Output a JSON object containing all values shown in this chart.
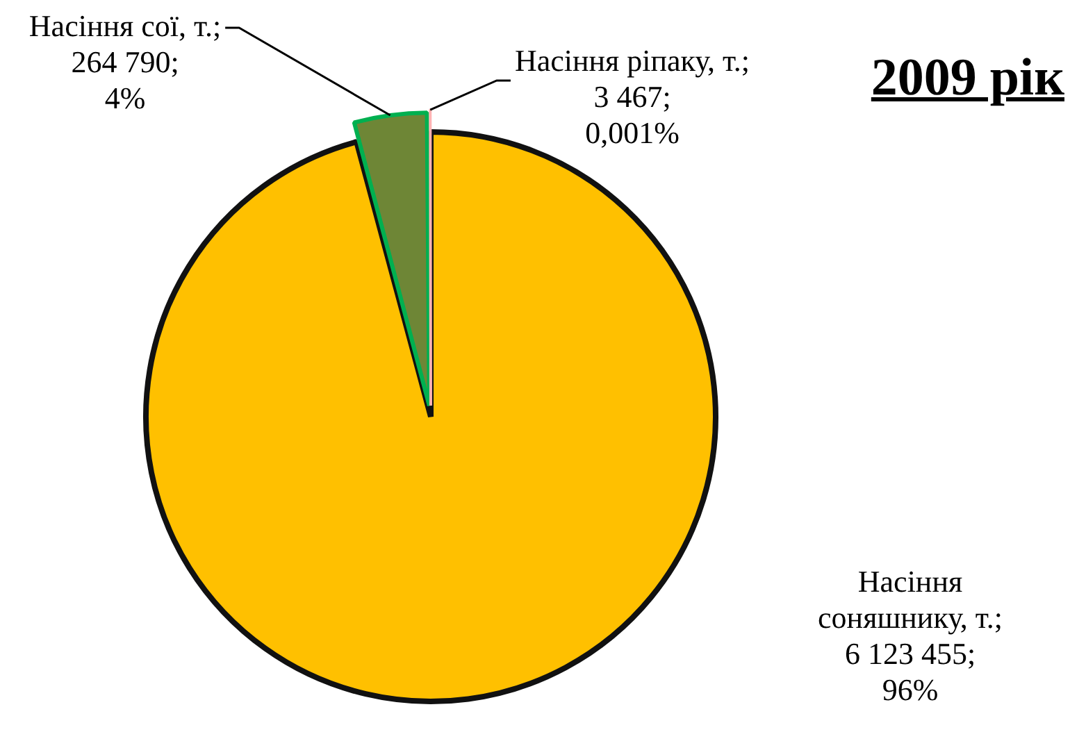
{
  "chart_data": {
    "type": "pie",
    "title": "2009 рік",
    "categories": [
      null,
      null,
      null
    ],
    "values": [
      6123455,
      264790,
      3467
    ],
    "colors": [
      "#ffc000",
      "#6e8636",
      "#ffb3b3"
    ],
    "value_labels": [
      "Насіння соняшнику, т.; 6 123 455; 96%",
      "Насіння сої, т.; 264 790; 4%",
      "Насіння ріпаку, т.; 3 467; 0,001%"
    ]
  }
}
